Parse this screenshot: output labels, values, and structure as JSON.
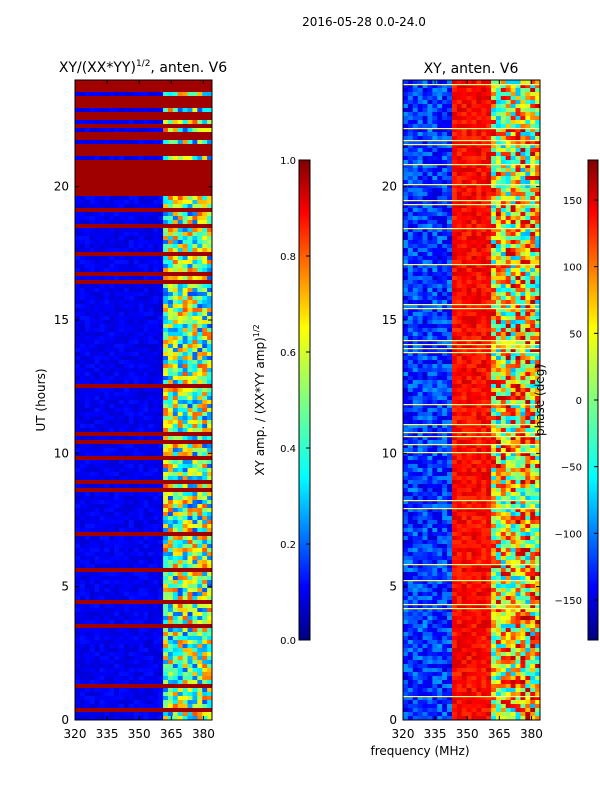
{
  "title": "2016-05-28 0.0-24.0",
  "colors": {
    "jet_stops": [
      "#00007f",
      "#0000ff",
      "#0080ff",
      "#00ffff",
      "#80ff80",
      "#ffff00",
      "#ff8000",
      "#ff0000",
      "#7f0000"
    ],
    "badrow": "#a00000",
    "bright": "#ffff80"
  },
  "chart_data": [
    {
      "type": "heatmap",
      "title_main": "XY/(XX*YY)",
      "title_sup": "1/2",
      "title_rest": ", anten. V6",
      "xlabel": "",
      "ylabel": "UT (hours)",
      "x_ticks": [
        "320",
        "335",
        "350",
        "365",
        "380"
      ],
      "y_ticks": [
        "0",
        "5",
        "10",
        "15",
        "20"
      ],
      "xlim": [
        320,
        384
      ],
      "ylim": [
        0,
        24
      ],
      "colorbar": {
        "label_main": "XY amp. / (XX*YY amp)",
        "label_sup": "1/2",
        "ticks": [
          "0.0",
          "0.2",
          "0.4",
          "0.6",
          "0.8",
          "1.0"
        ],
        "range": [
          0,
          1
        ]
      }
    },
    {
      "type": "heatmap",
      "title": "XY, anten. V6",
      "xlabel": "frequency (MHz)",
      "ylabel": "",
      "x_ticks": [
        "320",
        "335",
        "350",
        "365",
        "380"
      ],
      "y_ticks": [
        "0",
        "5",
        "10",
        "15",
        "20"
      ],
      "xlim": [
        320,
        384
      ],
      "ylim": [
        0,
        24
      ],
      "colorbar": {
        "label": "phase (deg)",
        "ticks": [
          "−150",
          "−100",
          "−50",
          "0",
          "50",
          "100",
          "150"
        ],
        "range": [
          -180,
          180
        ]
      }
    }
  ]
}
